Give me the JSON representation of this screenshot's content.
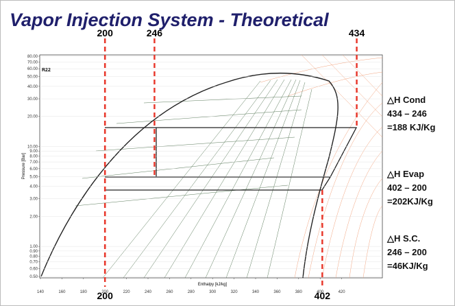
{
  "title": "Vapor Injection System - Theoretical",
  "diagram": {
    "refrigerant": "R22",
    "xlabel": "Enthalpy [kJ/kg]",
    "ylabel": "Pressure [Bar]",
    "xlim": [
      140,
      440
    ],
    "xticks": [
      140,
      160,
      180,
      200,
      220,
      240,
      260,
      280,
      300,
      320,
      340,
      360,
      380,
      400,
      420
    ],
    "ylim": [
      0.5,
      80
    ],
    "log_y": true,
    "yticks": [
      {
        "value": 80,
        "label": "80.00"
      },
      {
        "value": 70,
        "label": "70.00"
      },
      {
        "value": 60,
        "label": "60.00"
      },
      {
        "value": 50,
        "label": "50.00"
      },
      {
        "value": 40,
        "label": "40.00"
      },
      {
        "value": 30,
        "label": "30.00"
      },
      {
        "value": 20,
        "label": "20.00"
      },
      {
        "value": 10,
        "label": "10.00"
      },
      {
        "value": 9,
        "label": "9.00"
      },
      {
        "value": 8,
        "label": "8.00"
      },
      {
        "value": 7,
        "label": "7.00"
      },
      {
        "value": 6,
        "label": "6.00"
      },
      {
        "value": 5,
        "label": "5.00"
      },
      {
        "value": 4,
        "label": "4.00"
      },
      {
        "value": 3,
        "label": "3.00"
      },
      {
        "value": 2,
        "label": "2.00"
      },
      {
        "value": 1,
        "label": "1.00"
      },
      {
        "value": 0.9,
        "label": "0.90"
      },
      {
        "value": 0.8,
        "label": "0.80"
      },
      {
        "value": 0.7,
        "label": "0.70"
      },
      {
        "value": 0.6,
        "label": "0.60"
      },
      {
        "value": 0.5,
        "label": "0.50"
      }
    ],
    "top_markers": [
      200,
      246,
      434
    ],
    "bottom_markers": [
      200,
      402
    ],
    "marker_color": "#e8382c"
  },
  "annotations": [
    {
      "heading": "△H Cond",
      "formula": "434 – 246",
      "result": "=188 KJ/Kg"
    },
    {
      "heading": "△H Evap",
      "formula": "402 – 200",
      "result": "=202KJ/Kg"
    },
    {
      "heading": "△H  S.C.",
      "formula": "246 – 200",
      "result": "=46KJ/Kg"
    }
  ]
}
